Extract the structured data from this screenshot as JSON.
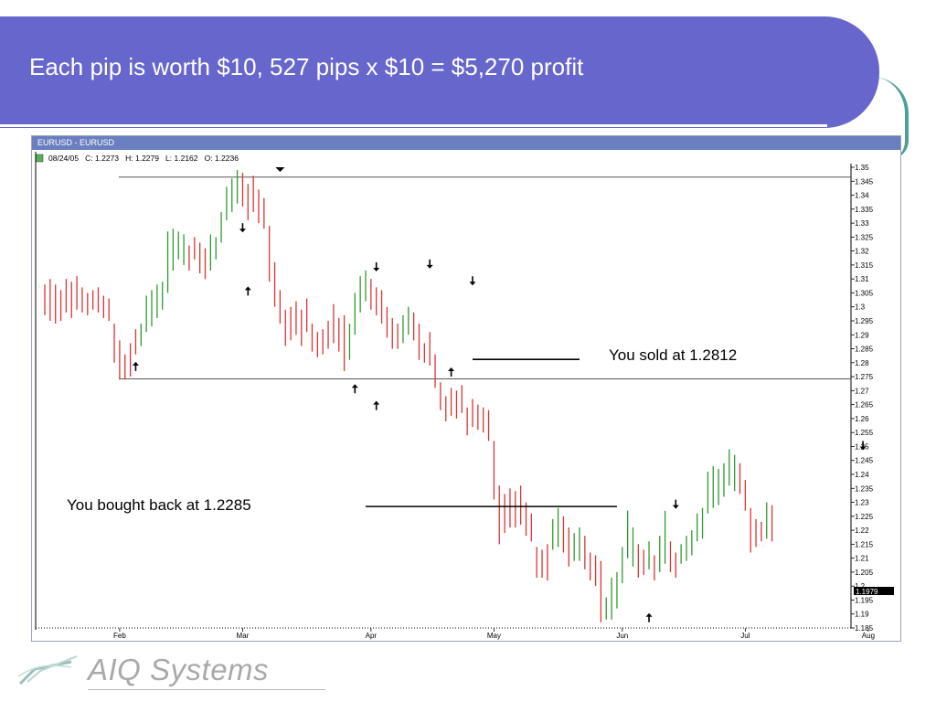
{
  "slide": {
    "title": "Each pip is worth $10, 527 pips x $10 = $5,270 profit",
    "logo_text": "AIQ Systems",
    "colors": {
      "header": "#6666cc",
      "teal": "#4f9e98",
      "up_bar": "#2e9a2e",
      "down_bar": "#dd3333"
    }
  },
  "window": {
    "title": "EURUSD - EURUSD",
    "info": "08/24/05   C: 1.2273   H: 1.2279   L: 1.2162   O: 1.2236"
  },
  "chart_data": {
    "type": "bar",
    "ylim": [
      1.185,
      1.35
    ],
    "yticks": [
      "1.35",
      "1.345",
      "1.34",
      "1.335",
      "1.33",
      "1.325",
      "1.32",
      "1.315",
      "1.31",
      "1.305",
      "1.3",
      "1.295",
      "1.29",
      "1.285",
      "1.28",
      "1.275",
      "1.27",
      "1.265",
      "1.26",
      "1.255",
      "1.25",
      "1.245",
      "1.24",
      "1.235",
      "1.23",
      "1.225",
      "1.22",
      "1.215",
      "1.21",
      "1.205",
      "1.2",
      "1.195",
      "1.19",
      "1.185"
    ],
    "xticks": [
      {
        "label": "Feb",
        "bar": 14
      },
      {
        "label": "Mar",
        "bar": 37
      },
      {
        "label": "Apr",
        "bar": 61
      },
      {
        "label": "May",
        "bar": 84
      },
      {
        "label": "Jun",
        "bar": 108
      },
      {
        "label": "Jul",
        "bar": 131
      },
      {
        "label": "Aug",
        "bar": 154
      }
    ],
    "last_price": "1.1979",
    "horizontal_lines": [
      1.3465,
      1.2742
    ],
    "bars": [
      [
        1.308,
        1.297,
        "d"
      ],
      [
        1.31,
        1.295,
        "d"
      ],
      [
        1.308,
        1.294,
        "d"
      ],
      [
        1.306,
        1.295,
        "d"
      ],
      [
        1.31,
        1.298,
        "d"
      ],
      [
        1.309,
        1.296,
        "d"
      ],
      [
        1.311,
        1.299,
        "d"
      ],
      [
        1.307,
        1.298,
        "d"
      ],
      [
        1.305,
        1.297,
        "d"
      ],
      [
        1.306,
        1.299,
        "d"
      ],
      [
        1.307,
        1.298,
        "d"
      ],
      [
        1.304,
        1.296,
        "d"
      ],
      [
        1.303,
        1.295,
        "d"
      ],
      [
        1.294,
        1.28,
        "d"
      ],
      [
        1.288,
        1.274,
        "d"
      ],
      [
        1.283,
        1.274,
        "d"
      ],
      [
        1.287,
        1.275,
        "d"
      ],
      [
        1.292,
        1.283,
        "d"
      ],
      [
        1.294,
        1.286,
        "u"
      ],
      [
        1.304,
        1.291,
        "u"
      ],
      [
        1.306,
        1.293,
        "u"
      ],
      [
        1.308,
        1.296,
        "u"
      ],
      [
        1.309,
        1.299,
        "u"
      ],
      [
        1.327,
        1.305,
        "u"
      ],
      [
        1.328,
        1.313,
        "u"
      ],
      [
        1.327,
        1.317,
        "u"
      ],
      [
        1.326,
        1.315,
        "u"
      ],
      [
        1.322,
        1.313,
        "d"
      ],
      [
        1.325,
        1.317,
        "d"
      ],
      [
        1.323,
        1.312,
        "d"
      ],
      [
        1.321,
        1.31,
        "d"
      ],
      [
        1.326,
        1.313,
        "u"
      ],
      [
        1.325,
        1.317,
        "u"
      ],
      [
        1.334,
        1.323,
        "u"
      ],
      [
        1.343,
        1.331,
        "u"
      ],
      [
        1.346,
        1.334,
        "u"
      ],
      [
        1.349,
        1.337,
        "u"
      ],
      [
        1.348,
        1.336,
        "d"
      ],
      [
        1.344,
        1.331,
        "d"
      ],
      [
        1.347,
        1.334,
        "d"
      ],
      [
        1.342,
        1.33,
        "d"
      ],
      [
        1.339,
        1.328,
        "d"
      ],
      [
        1.329,
        1.309,
        "d"
      ],
      [
        1.316,
        1.3,
        "d"
      ],
      [
        1.306,
        1.294,
        "d"
      ],
      [
        1.299,
        1.286,
        "d"
      ],
      [
        1.3,
        1.288,
        "d"
      ],
      [
        1.302,
        1.29,
        "d"
      ],
      [
        1.299,
        1.286,
        "d"
      ],
      [
        1.303,
        1.291,
        "d"
      ],
      [
        1.294,
        1.284,
        "d"
      ],
      [
        1.291,
        1.282,
        "d"
      ],
      [
        1.292,
        1.283,
        "d"
      ],
      [
        1.295,
        1.285,
        "d"
      ],
      [
        1.301,
        1.287,
        "d"
      ],
      [
        1.296,
        1.284,
        "d"
      ],
      [
        1.297,
        1.277,
        "d"
      ],
      [
        1.294,
        1.281,
        "u"
      ],
      [
        1.305,
        1.29,
        "u"
      ],
      [
        1.311,
        1.298,
        "u"
      ],
      [
        1.313,
        1.302,
        "u"
      ],
      [
        1.31,
        1.299,
        "d"
      ],
      [
        1.307,
        1.297,
        "d"
      ],
      [
        1.306,
        1.294,
        "d"
      ],
      [
        1.3,
        1.289,
        "d"
      ],
      [
        1.296,
        1.285,
        "d"
      ],
      [
        1.294,
        1.285,
        "d"
      ],
      [
        1.297,
        1.287,
        "u"
      ],
      [
        1.3,
        1.29,
        "u"
      ],
      [
        1.298,
        1.288,
        "d"
      ],
      [
        1.294,
        1.281,
        "d"
      ],
      [
        1.287,
        1.28,
        "d"
      ],
      [
        1.291,
        1.279,
        "d"
      ],
      [
        1.283,
        1.271,
        "d"
      ],
      [
        1.273,
        1.263,
        "d"
      ],
      [
        1.268,
        1.259,
        "d"
      ],
      [
        1.271,
        1.261,
        "d"
      ],
      [
        1.27,
        1.26,
        "d"
      ],
      [
        1.272,
        1.262,
        "d"
      ],
      [
        1.264,
        1.254,
        "d"
      ],
      [
        1.267,
        1.257,
        "d"
      ],
      [
        1.265,
        1.256,
        "d"
      ],
      [
        1.264,
        1.255,
        "d"
      ],
      [
        1.263,
        1.252,
        "d"
      ],
      [
        1.252,
        1.231,
        "d"
      ],
      [
        1.236,
        1.215,
        "d"
      ],
      [
        1.233,
        1.219,
        "d"
      ],
      [
        1.235,
        1.221,
        "d"
      ],
      [
        1.234,
        1.221,
        "d"
      ],
      [
        1.236,
        1.222,
        "d"
      ],
      [
        1.23,
        1.218,
        "d"
      ],
      [
        1.226,
        1.216,
        "d"
      ],
      [
        1.214,
        1.203,
        "d"
      ],
      [
        1.213,
        1.203,
        "d"
      ],
      [
        1.215,
        1.202,
        "d"
      ],
      [
        1.224,
        1.213,
        "u"
      ],
      [
        1.228,
        1.214,
        "u"
      ],
      [
        1.225,
        1.212,
        "d"
      ],
      [
        1.221,
        1.207,
        "d"
      ],
      [
        1.219,
        1.209,
        "u"
      ],
      [
        1.221,
        1.209,
        "u"
      ],
      [
        1.218,
        1.206,
        "d"
      ],
      [
        1.212,
        1.202,
        "d"
      ],
      [
        1.211,
        1.2,
        "d"
      ],
      [
        1.209,
        1.187,
        "d"
      ],
      [
        1.196,
        1.188,
        "u"
      ],
      [
        1.203,
        1.188,
        "u"
      ],
      [
        1.205,
        1.192,
        "u"
      ],
      [
        1.214,
        1.201,
        "u"
      ],
      [
        1.227,
        1.21,
        "u"
      ],
      [
        1.221,
        1.207,
        "u"
      ],
      [
        1.215,
        1.203,
        "d"
      ],
      [
        1.213,
        1.204,
        "d"
      ],
      [
        1.216,
        1.206,
        "u"
      ],
      [
        1.211,
        1.202,
        "d"
      ],
      [
        1.218,
        1.205,
        "u"
      ],
      [
        1.227,
        1.208,
        "u"
      ],
      [
        1.216,
        1.205,
        "d"
      ],
      [
        1.212,
        1.203,
        "d"
      ],
      [
        1.215,
        1.208,
        "u"
      ],
      [
        1.218,
        1.209,
        "u"
      ],
      [
        1.22,
        1.211,
        "u"
      ],
      [
        1.226,
        1.216,
        "u"
      ],
      [
        1.228,
        1.217,
        "u"
      ],
      [
        1.241,
        1.226,
        "u"
      ],
      [
        1.243,
        1.228,
        "u"
      ],
      [
        1.242,
        1.229,
        "u"
      ],
      [
        1.244,
        1.232,
        "u"
      ],
      [
        1.249,
        1.236,
        "u"
      ],
      [
        1.247,
        1.234,
        "u"
      ],
      [
        1.244,
        1.233,
        "d"
      ],
      [
        1.238,
        1.227,
        "d"
      ],
      [
        1.228,
        1.212,
        "d"
      ],
      [
        1.224,
        1.214,
        "d"
      ],
      [
        1.223,
        1.216,
        "d"
      ],
      [
        1.23,
        1.217,
        "u"
      ],
      [
        1.229,
        1.216,
        "d"
      ]
    ],
    "arrows_down": [
      [
        37,
        1.328
      ],
      [
        62,
        1.314
      ],
      [
        72,
        1.315
      ],
      [
        80,
        1.309
      ],
      [
        118,
        1.229
      ],
      [
        153,
        1.25
      ]
    ],
    "arrows_up": [
      [
        17,
        1.279
      ],
      [
        38,
        1.306
      ],
      [
        58,
        1.271
      ],
      [
        62,
        1.265
      ],
      [
        76,
        1.277
      ],
      [
        113,
        1.189
      ]
    ],
    "marker_triangles": [
      [
        44,
        1.35
      ]
    ],
    "annotations": [
      {
        "text": "You sold at 1.2812",
        "price": 1.2812,
        "line_from_bar": 80,
        "line_to_bar": 100
      },
      {
        "text": "You bought back at 1.2285",
        "price": 1.2285,
        "line_from_bar": 60,
        "line_to_bar": 107
      }
    ]
  }
}
